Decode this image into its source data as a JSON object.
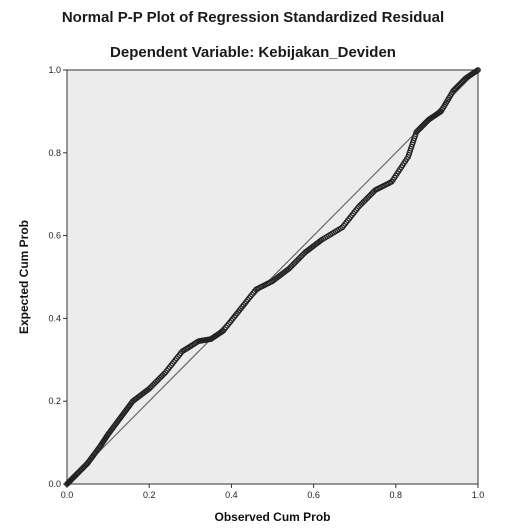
{
  "chart_data": {
    "type": "scatter",
    "title": "Normal P-P Plot of Regression Standardized Residual",
    "subtitle": "Dependent Variable: Kebijakan_Deviden",
    "xlabel": "Observed Cum Prob",
    "ylabel": "Expected Cum Prob",
    "xlim": [
      0.0,
      1.0
    ],
    "ylim": [
      0.0,
      1.0
    ],
    "x_ticks": [
      "0.0",
      "0.2",
      "0.4",
      "0.6",
      "0.8",
      "1.0"
    ],
    "y_ticks": [
      "0.0",
      "0.2",
      "0.4",
      "0.6",
      "0.8",
      "1.0"
    ],
    "reference_line": [
      [
        0.0,
        0.0
      ],
      [
        1.0,
        1.0
      ]
    ],
    "grid": false,
    "background": "#ececec",
    "marker": "open-circle",
    "curve_points": [
      [
        0.0,
        0.0
      ],
      [
        0.02,
        0.02
      ],
      [
        0.05,
        0.05
      ],
      [
        0.08,
        0.09
      ],
      [
        0.1,
        0.12
      ],
      [
        0.13,
        0.16
      ],
      [
        0.16,
        0.2
      ],
      [
        0.2,
        0.23
      ],
      [
        0.24,
        0.27
      ],
      [
        0.28,
        0.32
      ],
      [
        0.32,
        0.345
      ],
      [
        0.35,
        0.35
      ],
      [
        0.38,
        0.37
      ],
      [
        0.42,
        0.42
      ],
      [
        0.46,
        0.47
      ],
      [
        0.5,
        0.49
      ],
      [
        0.54,
        0.52
      ],
      [
        0.58,
        0.56
      ],
      [
        0.62,
        0.59
      ],
      [
        0.67,
        0.62
      ],
      [
        0.71,
        0.67
      ],
      [
        0.75,
        0.71
      ],
      [
        0.79,
        0.73
      ],
      [
        0.83,
        0.79
      ],
      [
        0.85,
        0.85
      ],
      [
        0.88,
        0.88
      ],
      [
        0.91,
        0.9
      ],
      [
        0.94,
        0.95
      ],
      [
        0.97,
        0.98
      ],
      [
        1.0,
        1.0
      ]
    ]
  }
}
